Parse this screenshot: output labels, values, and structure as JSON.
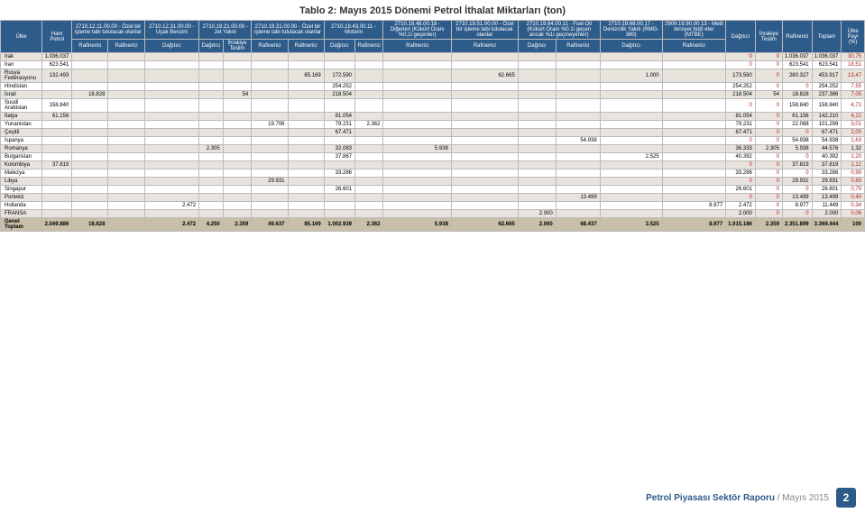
{
  "title": "Tablo 2: Mayıs 2015 Dönemi Petrol İthalat Miktarları (ton)",
  "footer": {
    "bold": "Petrol Piyasası Sektör Raporu",
    "light": " / Mayıs 2015",
    "page": "2"
  },
  "colors": {
    "header_bg": "#2d5b8a",
    "header_fg": "#ffffff",
    "row_odd": "#e8e4dd",
    "row_even": "#ffffff",
    "total_bg": "#c9bfa8",
    "highlight": "#b22222",
    "border": "#bbbbbb",
    "title_fg": "#333333"
  },
  "header": {
    "ulke": "Ülke",
    "ham": "Ham Petrol",
    "g1": "2710.12.11.00.00 - Özel bir işleme tabi tutulacak olanlar",
    "g2": "2710.12.31.00.00 - Uçak Benzini",
    "g3": "2710.19.21.00.00 - Jet Yakıtı",
    "g4": "2710.19.31.00.00 - Özel bir işleme tabi tutulacak olanlar",
    "g5": "2710.19.43.00.11 - Motorin",
    "g6": "2710.19.48.00.18 - Diğerleri (Kükürt Oranı %0,1i geçenler)",
    "g7": "2710.19.51.00.00 - Özel bir işleme tabi tutulacak olanlar",
    "g8": "2710.19.64.00.11 - Fuel Oil (Kükürt Oranı %0.1i geçen ancak %1i geçmeyenler)",
    "g9": "2710.19.68.00.17 - Denizcilik Yakıtı (RMG-380)",
    "g10": "2909.19.90.00.13 - Metil tersiyer bütil eter (MTBE)",
    "dag": "Dağıtıcı",
    "ihr": "İhrakiye Teslim",
    "raf": "Rafinerici",
    "top": "Toplam",
    "pay": "Ülke Payı (%)",
    "sub_raf": "Rafinerici",
    "sub_dag": "Dağıtıcı",
    "sub_ihr": "İhrakiye Teslim"
  },
  "rows": [
    {
      "c": "Irak",
      "v": [
        "1.036.037",
        "",
        "",
        "",
        "",
        "",
        "",
        "",
        "",
        "",
        "",
        "",
        "",
        "",
        "",
        "",
        "0",
        "0",
        "1.036.037",
        "1.036.037",
        "30,75"
      ],
      "hl": [
        16,
        17,
        20
      ]
    },
    {
      "c": "İran",
      "v": [
        "623.541",
        "",
        "",
        "",
        "",
        "",
        "",
        "",
        "",
        "",
        "",
        "",
        "",
        "",
        "",
        "",
        "0",
        "0",
        "623.541",
        "623.541",
        "18,51"
      ],
      "hl": [
        16,
        17,
        20
      ]
    },
    {
      "c": "Rusya Federasyonu",
      "v": [
        "132.493",
        "",
        "",
        "",
        "",
        "",
        "",
        "85.169",
        "172.590",
        "",
        "",
        "62.665",
        "",
        "",
        "1.000",
        "",
        "173.590",
        "0",
        "280.327",
        "453.917",
        "13,47"
      ],
      "hl": [
        17,
        20
      ]
    },
    {
      "c": "Hindistan",
      "v": [
        "",
        "",
        "",
        "",
        "",
        "",
        "",
        "",
        "254.252",
        "",
        "",
        "",
        "",
        "",
        "",
        "",
        "254.252",
        "0",
        "0",
        "254.252",
        "7,55"
      ],
      "hl": [
        17,
        18,
        20
      ]
    },
    {
      "c": "İsrail",
      "v": [
        "",
        "18.828",
        "",
        "",
        "",
        "54",
        "",
        "",
        "218.504",
        "",
        "",
        "",
        "",
        "",
        "",
        "",
        "218.504",
        "54",
        "18.828",
        "237.386",
        "7,05"
      ],
      "hl": [
        20
      ]
    },
    {
      "c": "Suudi Arabistan",
      "v": [
        "158.840",
        "",
        "",
        "",
        "",
        "",
        "",
        "",
        "",
        "",
        "",
        "",
        "",
        "",
        "",
        "",
        "0",
        "0",
        "158.840",
        "158.840",
        "4,71"
      ],
      "hl": [
        16,
        17,
        20
      ]
    },
    {
      "c": "İtalya",
      "v": [
        "61.156",
        "",
        "",
        "",
        "",
        "",
        "",
        "",
        "81.054",
        "",
        "",
        "",
        "",
        "",
        "",
        "",
        "81.054",
        "0",
        "61.156",
        "142.210",
        "4,22"
      ],
      "hl": [
        17,
        20
      ]
    },
    {
      "c": "Yunanistan",
      "v": [
        "",
        "",
        "",
        "",
        "",
        "",
        "19.706",
        "",
        "79.231",
        "2.362",
        "",
        "",
        "",
        "",
        "",
        "",
        "79.231",
        "0",
        "22.068",
        "101.299",
        "3,01"
      ],
      "hl": [
        17,
        20
      ]
    },
    {
      "c": "Çeşitli",
      "v": [
        "",
        "",
        "",
        "",
        "",
        "",
        "",
        "",
        "67.471",
        "",
        "",
        "",
        "",
        "",
        "",
        "",
        "67.471",
        "0",
        "0",
        "67.471",
        "2,00"
      ],
      "hl": [
        17,
        18,
        20
      ]
    },
    {
      "c": "İspanya",
      "v": [
        "",
        "",
        "",
        "",
        "",
        "",
        "",
        "",
        "",
        "",
        "",
        "",
        "",
        "54.938",
        "",
        "",
        "0",
        "0",
        "54.938",
        "54.938",
        "1,63"
      ],
      "hl": [
        16,
        17,
        20
      ]
    },
    {
      "c": "Romanya",
      "v": [
        "",
        "",
        "",
        "",
        "2.305",
        "",
        "",
        "",
        "32.083",
        "",
        "5.938",
        "",
        "",
        "",
        "",
        "",
        "36.333",
        "2.305",
        "5.938",
        "44.576",
        "1,32"
      ],
      "hl": [],
      "extra": {
        "3": "4.250"
      }
    },
    {
      "c": "Bulgaristan",
      "v": [
        "",
        "",
        "",
        "",
        "",
        "",
        "",
        "",
        "37.867",
        "",
        "",
        "",
        "",
        "",
        "2.525",
        "",
        "40.392",
        "0",
        "0",
        "40.392",
        "1,20"
      ],
      "hl": [
        17,
        18,
        20
      ]
    },
    {
      "c": "Kolombiya",
      "v": [
        "37.819",
        "",
        "",
        "",
        "",
        "",
        "",
        "",
        "",
        "",
        "",
        "",
        "",
        "",
        "",
        "",
        "0",
        "0",
        "37.819",
        "37.819",
        "1,12"
      ],
      "hl": [
        16,
        17,
        20
      ]
    },
    {
      "c": "Malezya",
      "v": [
        "",
        "",
        "",
        "",
        "",
        "",
        "",
        "",
        "33.286",
        "",
        "",
        "",
        "",
        "",
        "",
        "",
        "33.286",
        "0",
        "0",
        "33.286",
        "0,99"
      ],
      "hl": [
        17,
        18,
        20
      ]
    },
    {
      "c": "Libya",
      "v": [
        "",
        "",
        "",
        "",
        "",
        "",
        "29.931",
        "",
        "",
        "",
        "",
        "",
        "",
        "",
        "",
        "",
        "0",
        "0",
        "29.931",
        "29.931",
        "0,89"
      ],
      "hl": [
        16,
        17,
        20
      ]
    },
    {
      "c": "Singapur",
      "v": [
        "",
        "",
        "",
        "",
        "",
        "",
        "",
        "",
        "26.601",
        "",
        "",
        "",
        "",
        "",
        "",
        "",
        "26.601",
        "0",
        "0",
        "26.601",
        "0,79"
      ],
      "hl": [
        17,
        18,
        20
      ]
    },
    {
      "c": "Portekiz",
      "v": [
        "",
        "",
        "",
        "",
        "",
        "",
        "",
        "",
        "",
        "",
        "",
        "",
        "",
        "13.499",
        "",
        "",
        "0",
        "0",
        "13.499",
        "13.499",
        "0,40"
      ],
      "hl": [
        16,
        17,
        20
      ]
    },
    {
      "c": "Hollanda",
      "v": [
        "",
        "",
        "",
        "2.472",
        "",
        "",
        "",
        "",
        "",
        "",
        "",
        "",
        "",
        "",
        "",
        "8.977",
        "2.472",
        "0",
        "8.977",
        "11.449",
        "0,34"
      ],
      "hl": [
        17,
        20
      ]
    },
    {
      "c": "FRANSA",
      "v": [
        "",
        "",
        "",
        "",
        "",
        "",
        "",
        "",
        "",
        "",
        "",
        "",
        "2.000",
        "",
        "",
        "",
        "2.000",
        "0",
        "0",
        "2.000",
        "0,06"
      ],
      "hl": [
        17,
        18,
        20
      ]
    }
  ],
  "total": {
    "c": "Genel Toplam",
    "v": [
      "2.049.886",
      "18.828",
      "",
      "2.472",
      "4.250",
      "2.359",
      "49.637",
      "85.169",
      "1.002.939",
      "2.362",
      "5.938",
      "62.665",
      "2.000",
      "68.437",
      "3.525",
      "8.977",
      "1.015.186",
      "2.359",
      "2.351.899",
      "3.369.444",
      "100"
    ]
  }
}
